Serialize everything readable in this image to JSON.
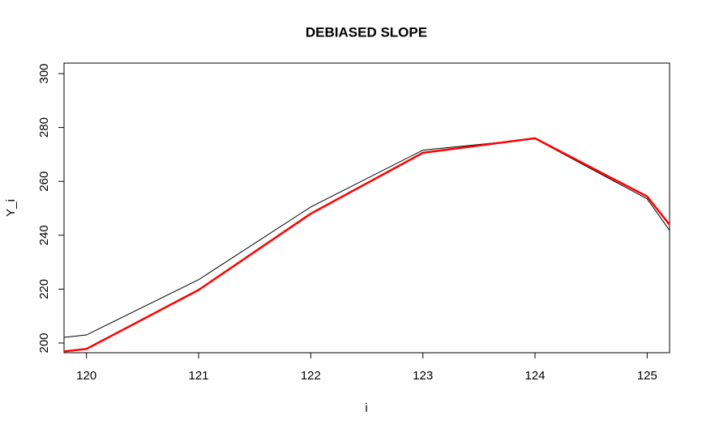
{
  "chart_data": {
    "type": "line",
    "title": "DEBIASED SLOPE",
    "xlabel": "i",
    "ylabel": "Y_i",
    "x": [
      119.8,
      120,
      121,
      122,
      123,
      124,
      125,
      125.2
    ],
    "series": [
      {
        "color": "#000000",
        "values": [
          202.1,
          203,
          223.5,
          250.5,
          271.6,
          275.8,
          253.5,
          241.8
        ]
      },
      {
        "color": "#ff0000",
        "values": [
          196.9,
          197.8,
          219.7,
          248,
          270.6,
          276,
          254.4,
          243.9
        ]
      }
    ],
    "xlim": [
      119.8,
      125.2
    ],
    "xticks": [
      120,
      121,
      122,
      123,
      124,
      125
    ],
    "ylim": [
      196.4,
      303.9
    ],
    "yticks": [
      200,
      220,
      240,
      260,
      280,
      300
    ]
  }
}
